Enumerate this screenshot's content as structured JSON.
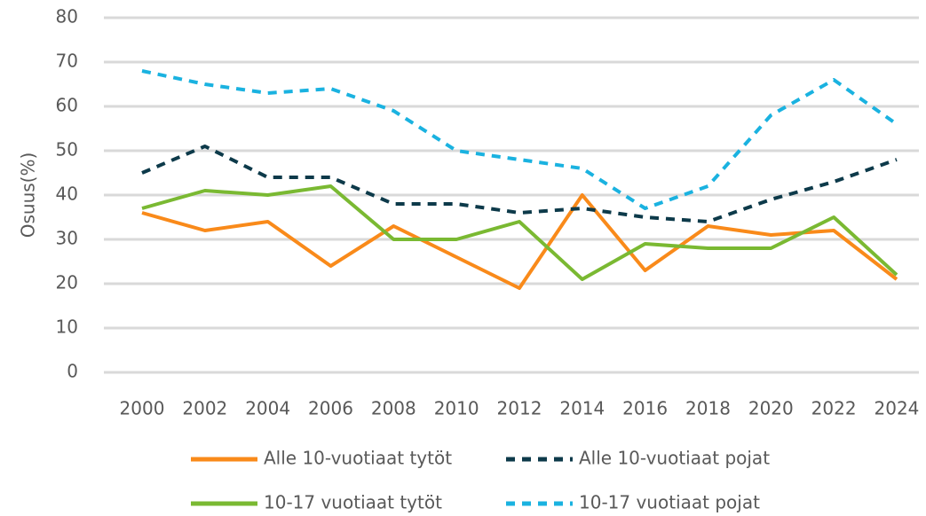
{
  "chart_data": {
    "type": "line",
    "y_label": "Osuus(%)",
    "categories": [
      "2000",
      "2002",
      "2004",
      "2006",
      "2008",
      "2010",
      "2012",
      "2014",
      "2016",
      "2018",
      "2020",
      "2022",
      "2024"
    ],
    "series": [
      {
        "name": "Alle 10-vuotiaat tytöt",
        "color": "#f98a1a",
        "line_style": "solid",
        "values": [
          36,
          32,
          34,
          24,
          33,
          26,
          19,
          40,
          23,
          33,
          31,
          32,
          21
        ]
      },
      {
        "name": "Alle 10-vuotiaat pojat",
        "color": "#0d3a4a",
        "line_style": "dashed",
        "values": [
          45,
          51,
          44,
          44,
          38,
          38,
          36,
          37,
          35,
          34,
          39,
          43,
          48
        ]
      },
      {
        "name": "10-17 vuotiaat tytöt",
        "color": "#7ab932",
        "line_style": "solid",
        "values": [
          37,
          41,
          40,
          42,
          30,
          30,
          34,
          21,
          29,
          28,
          28,
          35,
          22
        ]
      },
      {
        "name": "10-17 vuotiaat pojat",
        "color": "#1ab2e0",
        "line_style": "dashed",
        "values": [
          68,
          65,
          63,
          64,
          59,
          50,
          48,
          46,
          37,
          42,
          58,
          66,
          56
        ]
      }
    ],
    "ylim": [
      0,
      80
    ],
    "yticks": [
      0,
      10,
      20,
      30,
      40,
      50,
      60,
      70,
      80
    ],
    "grid": true,
    "legend": "bottom"
  }
}
